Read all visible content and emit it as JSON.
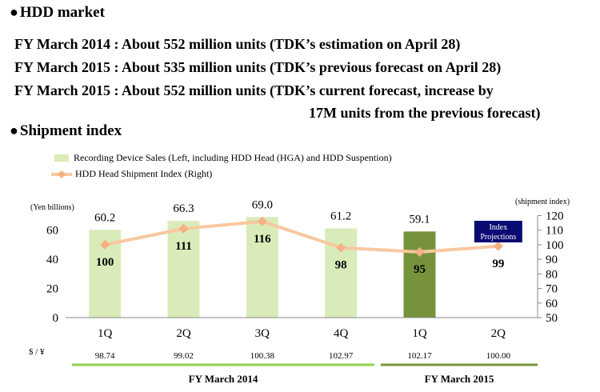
{
  "header": {
    "hdd_market_title": "HDD market",
    "fy_lines": [
      "FY March 2014 : About 552 million units (TDK’s estimation on April 28)",
      "FY March 2015 : About 535 million units (TDK’s previous forecast on April 28)",
      "FY March 2015 : About 552 million units (TDK’s current forecast, increase by",
      "17M units from the previous forecast)"
    ],
    "shipment_title": "Shipment index"
  },
  "legend": {
    "bars_label": "Recording Device Sales (Left, including HDD Head (HGA) and HDD Suspention)",
    "line_label": "HDD Head Shipment Index (Right)"
  },
  "chart_data": {
    "type": "bar",
    "categories": [
      "1Q",
      "2Q",
      "3Q",
      "4Q",
      "1Q",
      "2Q"
    ],
    "bar_values": [
      60.2,
      66.3,
      69.0,
      61.2,
      59.1,
      null
    ],
    "bar_labels": [
      "60.2",
      "66.3",
      "69.0",
      "61.2",
      "59.1",
      ""
    ],
    "bar_colors": [
      "#d9ebb9",
      "#d9ebb9",
      "#d9ebb9",
      "#d9ebb9",
      "#76933c",
      null
    ],
    "line_values": [
      100,
      111,
      116,
      98,
      95,
      99
    ],
    "line_labels": [
      "100",
      "111",
      "116",
      "98",
      "95",
      "99"
    ],
    "line_color": "#f8c8a0",
    "marker_color": "#f4b183",
    "left_axis": {
      "unit": "(Yen billions)",
      "ylim": [
        0,
        70
      ],
      "ticks": [
        0,
        20,
        40,
        60
      ]
    },
    "right_axis": {
      "unit": "(shipment index)",
      "ylim": [
        50,
        120
      ],
      "ticks": [
        50,
        60,
        70,
        80,
        90,
        100,
        110,
        120
      ]
    },
    "fx_label": "$ / ¥",
    "fx_rates": [
      "98.74",
      "99.02",
      "100.38",
      "102.97",
      "102.17",
      "100.00"
    ],
    "annotation": {
      "line1": "Index",
      "line2": "Projections",
      "bg": "#0a0a73"
    },
    "periods": [
      {
        "name": "FY March 2014",
        "color": "#92d050"
      },
      {
        "name": "FY March 2015",
        "color": "#76933c"
      }
    ]
  }
}
